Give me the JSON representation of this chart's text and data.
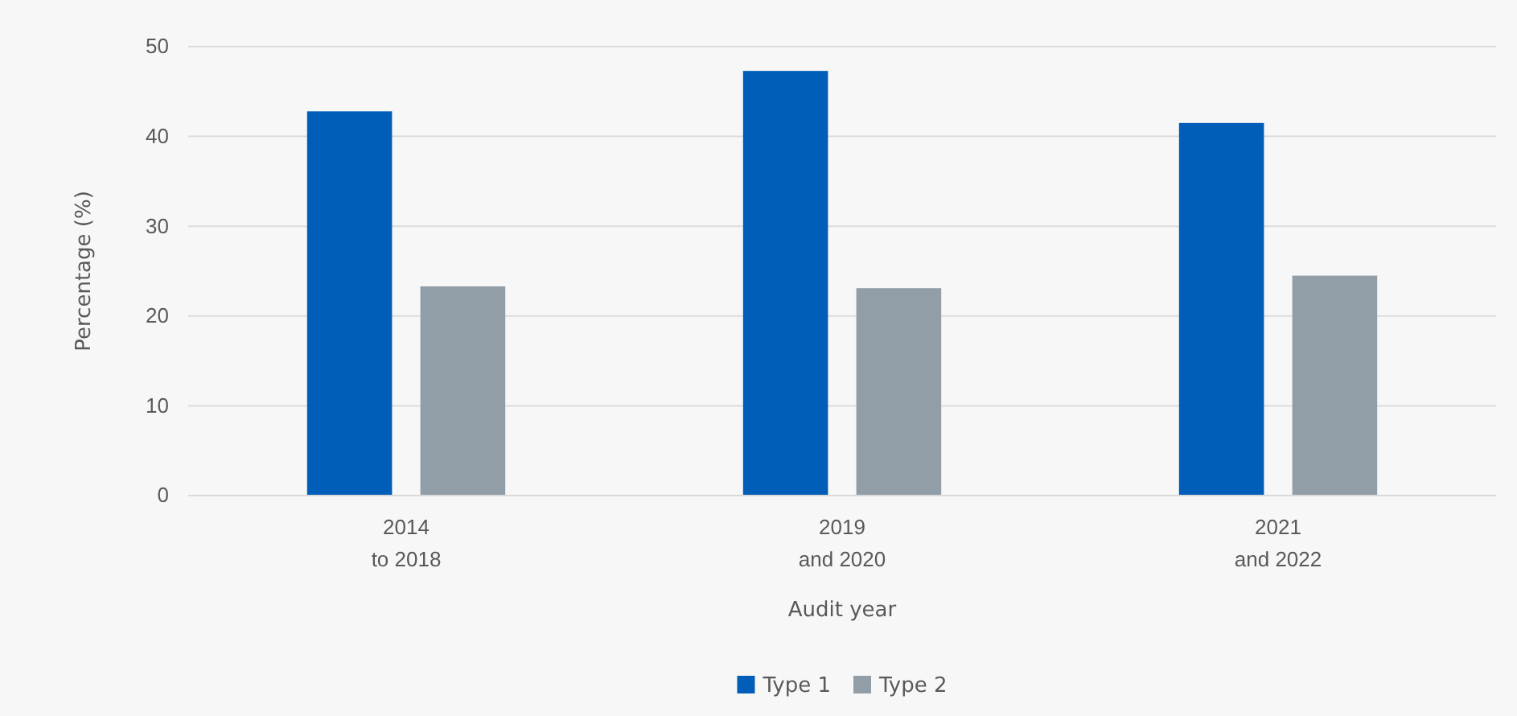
{
  "chart_data": {
    "type": "bar",
    "xlabel": "Audit year",
    "ylabel": "Percentage (%)",
    "categories": [
      "2014\nto 2018",
      "2019\nand 2020",
      "2021\nand 2022"
    ],
    "series": [
      {
        "name": "Type 1",
        "color": "#005eb8",
        "values": [
          42.8,
          47.3,
          41.5
        ]
      },
      {
        "name": "Type 2",
        "color": "#919ea8",
        "values": [
          23.3,
          23.1,
          24.5
        ]
      }
    ],
    "ylim": [
      0,
      50
    ],
    "yticks": [
      0,
      10,
      20,
      30,
      40,
      50
    ],
    "grid": "y",
    "legend": "bottom"
  }
}
